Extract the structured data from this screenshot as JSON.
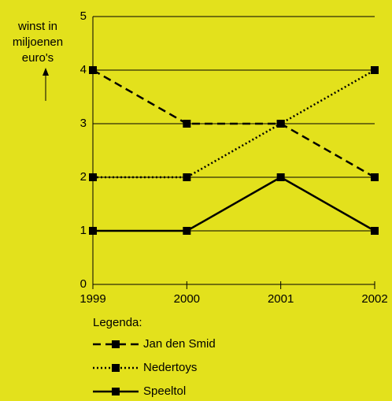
{
  "chart_data": {
    "type": "line",
    "ylabel": [
      "winst in",
      "miljoenen",
      "euro's"
    ],
    "categories": [
      "1999",
      "2000",
      "2001",
      "2002"
    ],
    "ylim": [
      0,
      5
    ],
    "yticks": [
      0,
      1,
      2,
      3,
      4,
      5
    ],
    "grid": true,
    "legend_title": "Legenda:",
    "series": [
      {
        "name": "Jan den Smid",
        "color": "#000000",
        "style": "dashed",
        "values": [
          4,
          3,
          3,
          2
        ]
      },
      {
        "name": "Nedertoys",
        "color": "#000000",
        "style": "dotted",
        "values": [
          2,
          2,
          3,
          4
        ]
      },
      {
        "name": "Speeltol",
        "color": "#000000",
        "style": "solid",
        "values": [
          1,
          1,
          2,
          1
        ]
      }
    ]
  }
}
